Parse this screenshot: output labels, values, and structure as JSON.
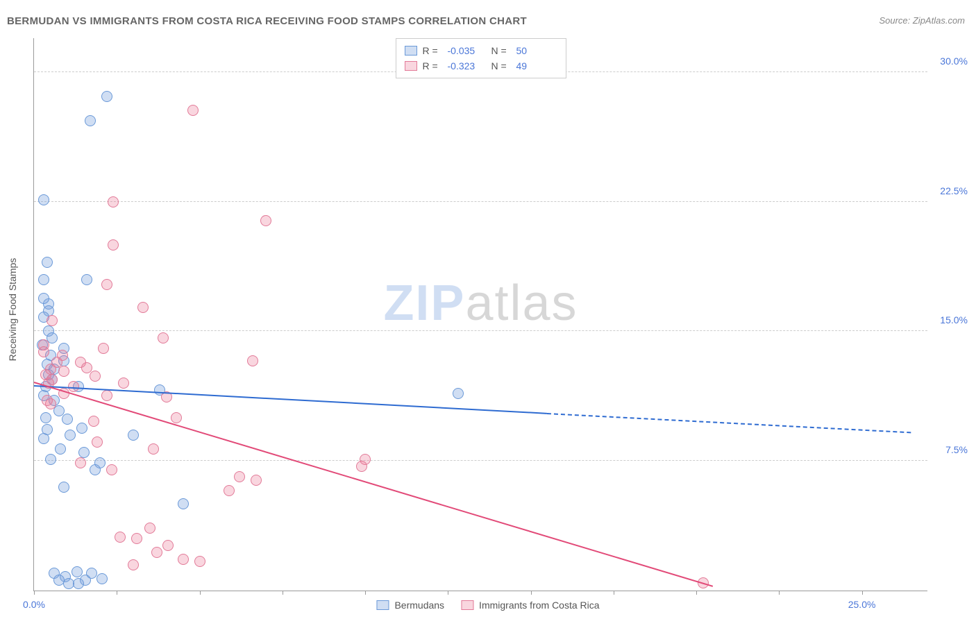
{
  "title": "BERMUDAN VS IMMIGRANTS FROM COSTA RICA RECEIVING FOOD STAMPS CORRELATION CHART",
  "source": "Source: ZipAtlas.com",
  "ylabel": "Receiving Food Stamps",
  "watermark": {
    "zip": "ZIP",
    "atlas": "atlas"
  },
  "chart": {
    "type": "scatter",
    "background_color": "#ffffff",
    "grid_color": "#cccccc",
    "axis_color": "#999999",
    "tick_label_color": "#4a76d8",
    "tick_fontsize": 14,
    "xlim": [
      0,
      27.0
    ],
    "ylim": [
      0,
      32.0
    ],
    "xticks": [
      0.0,
      2.5,
      5.0,
      7.5,
      10.0,
      12.5,
      15.0,
      17.5,
      20.0,
      22.5,
      25.0
    ],
    "xtick_labels": {
      "0": "0.0%",
      "25": "25.0%"
    },
    "yticks": [
      7.5,
      15.0,
      22.5,
      30.0
    ],
    "ytick_labels": [
      "7.5%",
      "15.0%",
      "22.5%",
      "30.0%"
    ],
    "marker_radius": 8,
    "marker_border_width": 1.2,
    "trend_line_width": 2
  },
  "series": [
    {
      "name": "Bermudans",
      "fill_color": "rgba(120,160,220,0.35)",
      "stroke_color": "#6a99d8",
      "trend_color": "#2e6bd1",
      "r_value": "-0.035",
      "n_value": "50",
      "trend": {
        "x1": 0.0,
        "y1": 11.8,
        "x2": 15.5,
        "y2": 10.2,
        "dash_to_x": 26.5,
        "dash_to_y": 9.1
      },
      "points": [
        [
          0.3,
          22.6
        ],
        [
          0.4,
          19.0
        ],
        [
          0.3,
          18.0
        ],
        [
          1.6,
          18.0
        ],
        [
          0.45,
          16.6
        ],
        [
          0.45,
          16.2
        ],
        [
          0.3,
          15.8
        ],
        [
          0.45,
          15.0
        ],
        [
          0.25,
          14.2
        ],
        [
          0.9,
          14.0
        ],
        [
          0.5,
          13.6
        ],
        [
          0.4,
          13.1
        ],
        [
          0.45,
          12.5
        ],
        [
          0.55,
          12.2
        ],
        [
          0.35,
          11.8
        ],
        [
          1.35,
          11.8
        ],
        [
          3.8,
          11.6
        ],
        [
          0.3,
          11.3
        ],
        [
          0.6,
          11.0
        ],
        [
          0.75,
          10.4
        ],
        [
          1.0,
          9.9
        ],
        [
          1.45,
          9.4
        ],
        [
          1.1,
          9.0
        ],
        [
          3.0,
          9.0
        ],
        [
          0.8,
          8.2
        ],
        [
          1.5,
          8.0
        ],
        [
          2.0,
          7.4
        ],
        [
          1.85,
          7.0
        ],
        [
          0.9,
          6.0
        ],
        [
          4.5,
          5.0
        ],
        [
          12.8,
          11.4
        ],
        [
          2.2,
          28.6
        ],
        [
          1.7,
          27.2
        ],
        [
          0.6,
          1.0
        ],
        [
          0.95,
          0.8
        ],
        [
          1.3,
          1.1
        ],
        [
          1.55,
          0.6
        ],
        [
          1.05,
          0.4
        ],
        [
          0.75,
          0.6
        ],
        [
          1.75,
          1.0
        ],
        [
          1.35,
          0.4
        ],
        [
          2.05,
          0.7
        ],
        [
          0.35,
          10.0
        ],
        [
          0.6,
          12.8
        ],
        [
          0.3,
          8.8
        ],
        [
          0.5,
          7.6
        ],
        [
          0.9,
          13.3
        ],
        [
          0.3,
          16.9
        ],
        [
          0.55,
          14.6
        ],
        [
          0.4,
          9.3
        ]
      ]
    },
    {
      "name": "Immigrants from Costa Rica",
      "fill_color": "rgba(235,120,150,0.30)",
      "stroke_color": "#e27a98",
      "trend_color": "#e24a78",
      "r_value": "-0.323",
      "n_value": "49",
      "trend": {
        "x1": 0.0,
        "y1": 12.0,
        "x2": 20.5,
        "y2": 0.2,
        "dash_to_x": null,
        "dash_to_y": null
      },
      "points": [
        [
          2.4,
          22.5
        ],
        [
          4.8,
          27.8
        ],
        [
          2.4,
          20.0
        ],
        [
          2.2,
          17.7
        ],
        [
          3.3,
          16.4
        ],
        [
          3.9,
          14.6
        ],
        [
          0.55,
          15.6
        ],
        [
          0.3,
          14.2
        ],
        [
          0.7,
          13.2
        ],
        [
          1.4,
          13.2
        ],
        [
          0.5,
          12.8
        ],
        [
          0.35,
          12.5
        ],
        [
          0.55,
          12.2
        ],
        [
          1.85,
          12.4
        ],
        [
          2.2,
          11.3
        ],
        [
          1.8,
          9.8
        ],
        [
          0.5,
          10.8
        ],
        [
          4.0,
          11.2
        ],
        [
          4.3,
          10.0
        ],
        [
          6.6,
          13.3
        ],
        [
          7.0,
          21.4
        ],
        [
          3.6,
          8.2
        ],
        [
          1.4,
          7.4
        ],
        [
          2.35,
          7.0
        ],
        [
          6.2,
          6.6
        ],
        [
          6.7,
          6.4
        ],
        [
          5.9,
          5.8
        ],
        [
          3.5,
          3.6
        ],
        [
          3.1,
          3.0
        ],
        [
          4.05,
          2.6
        ],
        [
          3.7,
          2.2
        ],
        [
          5.0,
          1.7
        ],
        [
          10.0,
          7.6
        ],
        [
          9.9,
          7.2
        ],
        [
          2.1,
          14.0
        ],
        [
          0.85,
          13.6
        ],
        [
          1.6,
          12.9
        ],
        [
          2.7,
          12.0
        ],
        [
          0.9,
          11.4
        ],
        [
          0.4,
          11.0
        ],
        [
          20.2,
          0.45
        ],
        [
          0.3,
          13.8
        ],
        [
          0.45,
          12.0
        ],
        [
          0.9,
          12.7
        ],
        [
          1.2,
          11.8
        ],
        [
          2.6,
          3.1
        ],
        [
          4.5,
          1.8
        ],
        [
          3.0,
          1.5
        ],
        [
          1.9,
          8.6
        ]
      ]
    }
  ],
  "legend_top": {
    "r_label": "R =",
    "n_label": "N ="
  },
  "legend_bottom": {
    "items": [
      "Bermudans",
      "Immigrants from Costa Rica"
    ]
  }
}
